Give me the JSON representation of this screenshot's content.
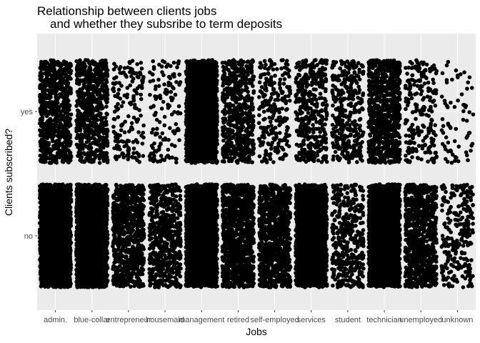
{
  "chart_data": {
    "type": "scatter",
    "jitter": true,
    "title": [
      "Relationship between clients jobs",
      "and whether they subsribe to term deposits"
    ],
    "xlabel": "Jobs",
    "ylabel": "Clients subscribed?",
    "categories": [
      "admin.",
      "blue-collar",
      "entrepreneur",
      "housemaid",
      "management",
      "retired",
      "self-employed",
      "services",
      "student",
      "technician",
      "unemployed",
      "unknown"
    ],
    "y_categories": [
      "no",
      "yes"
    ],
    "grid": true,
    "legend": "none",
    "panel_background": "#ebebeb",
    "point_color": "#000000",
    "relative_density": {
      "no": [
        1.0,
        1.0,
        0.55,
        0.45,
        1.0,
        0.75,
        0.7,
        0.95,
        0.3,
        1.0,
        0.6,
        0.2
      ],
      "yes": [
        0.55,
        0.45,
        0.12,
        0.1,
        0.85,
        0.4,
        0.18,
        0.3,
        0.25,
        0.6,
        0.16,
        0.05
      ]
    }
  }
}
